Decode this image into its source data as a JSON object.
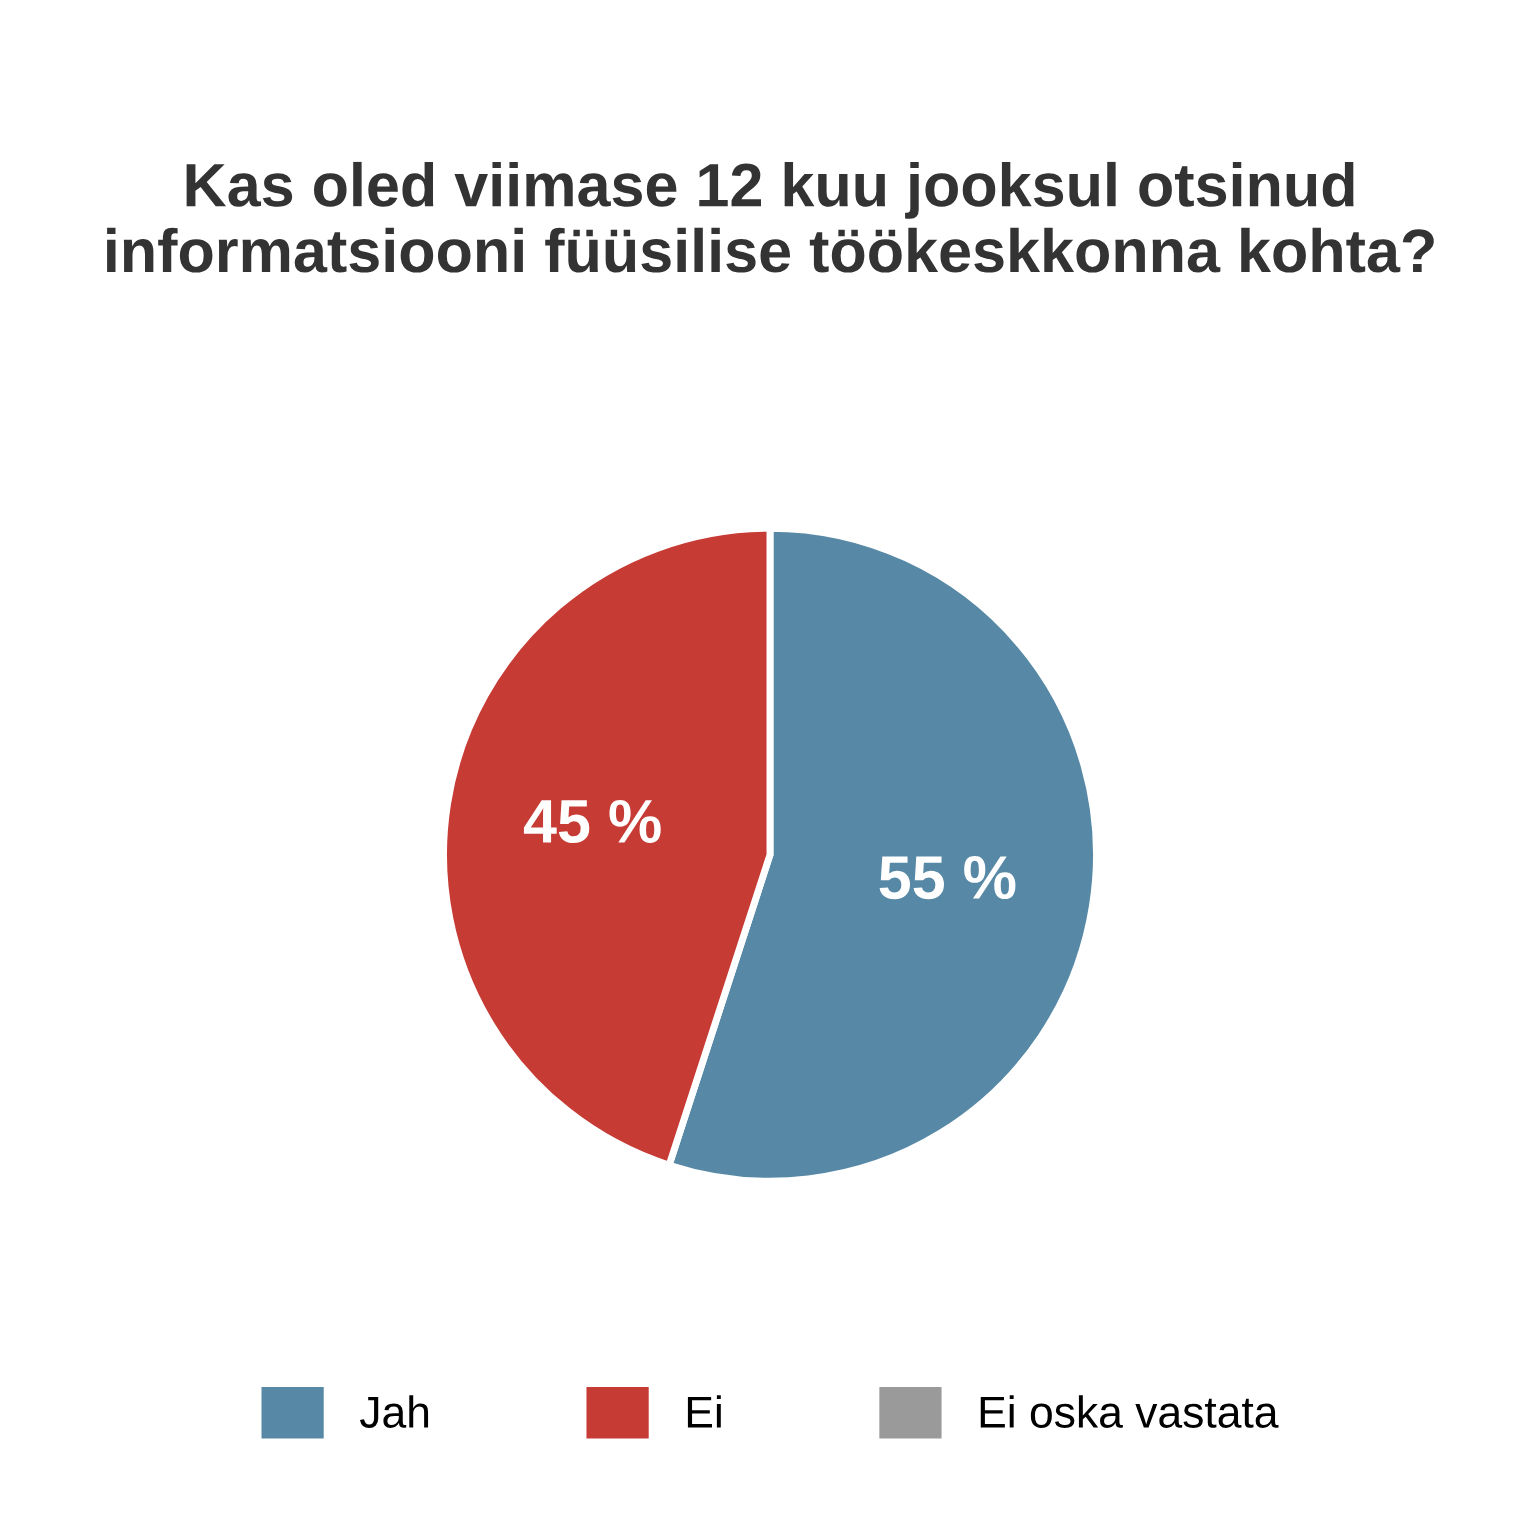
{
  "chart_data": {
    "type": "pie",
    "title": "Kas oled viimase 12 kuu jooksul otsinud informatsiooni füüsilise töökeskkonna kohta?",
    "categories": [
      "Jah",
      "Ei",
      "Ei oska vastata"
    ],
    "values": [
      55,
      45,
      0
    ],
    "colors": [
      "#5789a6",
      "#c73b35",
      "#9a9a9a"
    ],
    "value_labels": [
      "55 %",
      "45 %",
      null
    ],
    "legend": "bottom"
  }
}
